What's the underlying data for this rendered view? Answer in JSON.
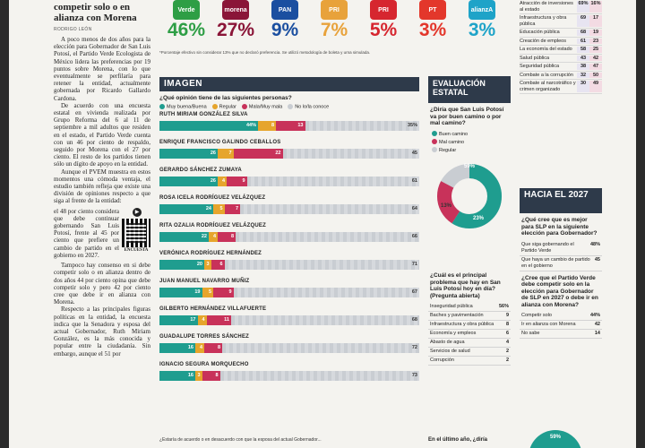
{
  "article": {
    "headline": "competir solo o en alianza con Morena",
    "byline": "RODRIGO LEÓN",
    "paragraphs": [
      "A poco menos de dos años para la elección para Gobernador de San Luis Potosí, el Partido Verde Ecologista de México lidera las preferencias por 19 puntos sobre Morena, con lo que eventualmente se perfilaría para retener la entidad, actualmente gobernada por Ricardo Gallardo Cardona.",
      "De acuerdo con una encuesta estatal en vivienda realizada por Grupo Reforma del 6 al 11 de septiembre a mil adultos que residen en el estado, el Partido Verde cuenta con un 46 por ciento de respaldo, seguido por Morena con el 27 por ciento. El resto de los partidos tienen sólo un dígito de apoyo en la entidad.",
      "Aunque el PVEM muestra en estos momentos una cómoda ventaja, el estudio también refleja que existe una división de opiniones respecto a que siga al frente de la entidad:"
    ],
    "qr_text": "el 48 por ciento considera que debe continuar gobernando San Luis Potosí, frente al 45 por ciento que prefiere un cambio de partido en el gobierno en 2027.",
    "qr_label": "ENCUESTA",
    "paragraphs2": [
      "Tampoco hay consenso en si debe competir solo o en alianza dentro de dos años 44 por ciento opina que debe competir solo y pero 42 por ciento cree que debe ir en alianza con Morena.",
      "Respecto a las principales figuras políticas en la entidad, la encuesta indica que la Senadora y esposa del actual Gobernador, Ruth Miriam González, es la más conocida y popular entre la ciudadanía. Sin embargo, aunque el 51 por"
    ]
  },
  "parties": [
    {
      "name": "Verde",
      "pct": "46%",
      "color": "#2e9e45"
    },
    {
      "name": "morena",
      "pct": "27%",
      "color": "#8a1538"
    },
    {
      "name": "PAN",
      "pct": "9%",
      "color": "#1b4fa0"
    },
    {
      "name": "PRI",
      "pct": "7%",
      "color": "#e8a23b"
    },
    {
      "name": "PRI",
      "pct": "5%",
      "color": "#d6262f"
    },
    {
      "name": "PT",
      "pct": "3%",
      "color": "#e3372b"
    },
    {
      "name": "alianzA",
      "pct": "3%",
      "color": "#1ea3c8"
    }
  ],
  "footnote": "*Porcentaje efectivo sin considerar 13% que no declaró preferencia. Se utilizó metodología de boleta y urna simulada.",
  "imagen": {
    "title": "IMAGEN",
    "question": "¿Qué opinión tiene de las siguientes personas?",
    "legend": [
      {
        "label": "Muy buena/Buena",
        "color": "#1f9d8f"
      },
      {
        "label": "Regular",
        "color": "#e6a52c"
      },
      {
        "label": "Mala/Muy mala",
        "color": "#c8325a"
      },
      {
        "label": "No lo/la conoce",
        "color": "#c9cdd2"
      }
    ],
    "people": [
      {
        "name": "RUTH MIRIAM GONZÁLEZ SILVA",
        "good": 44,
        "regular": 8,
        "bad": 13,
        "unknown": 35
      },
      {
        "name": "ENRIQUE FRANCISCO GALINDO CEBALLOS",
        "good": 26,
        "regular": 7,
        "bad": 22,
        "unknown": 45
      },
      {
        "name": "GERARDO SÁNCHEZ ZUMAYA",
        "good": 26,
        "regular": 4,
        "bad": 9,
        "unknown": 61
      },
      {
        "name": "ROSA ICELA RODRÍGUEZ VELÁZQUEZ",
        "good": 24,
        "regular": 5,
        "bad": 7,
        "unknown": 64
      },
      {
        "name": "RITA OZALIA RODRÍGUEZ VELÁZQUEZ",
        "good": 22,
        "regular": 4,
        "bad": 8,
        "unknown": 66
      },
      {
        "name": "VERÓNICA RODRÍGUEZ HERNÁNDEZ",
        "good": 20,
        "regular": 3,
        "bad": 6,
        "unknown": 71
      },
      {
        "name": "JUAN MANUEL NAVARRO MUÑIZ",
        "good": 19,
        "regular": 5,
        "bad": 9,
        "unknown": 67
      },
      {
        "name": "GILBERTO HERNÁNDEZ VILLAFUERTE",
        "good": 17,
        "regular": 4,
        "bad": 11,
        "unknown": 68
      },
      {
        "name": "GUADALUPE TORRES SÁNCHEZ",
        "good": 16,
        "regular": 4,
        "bad": 8,
        "unknown": 72
      },
      {
        "name": "IGNACIO SEGURA MORQUECHO",
        "good": 16,
        "regular": 3,
        "bad": 8,
        "unknown": 73
      }
    ]
  },
  "evaluacion": {
    "title": "EVALUACIÓN ESTATAL",
    "question": "¿Diría que San Luis Potosí va por buen camino o por mal camino?",
    "legend": [
      {
        "label": "Buen camino",
        "color": "#1f9d8f"
      },
      {
        "label": "Mal camino",
        "color": "#c8325a"
      },
      {
        "label": "Regular",
        "color": "#c9cdd2"
      }
    ],
    "values": {
      "buen": "59%",
      "mal": "23%",
      "regular": "13%"
    }
  },
  "problema": {
    "question": "¿Cuál es el principal problema que hay en San Luis Potosí hoy en día? (Pregunta abierta)",
    "rows": [
      {
        "label": "Inseguridad pública",
        "value": "56%"
      },
      {
        "label": "Baches y pavimentación",
        "value": "9"
      },
      {
        "label": "Infraestructura y obra pública",
        "value": "8"
      },
      {
        "label": "Economía y empleos",
        "value": "6"
      },
      {
        "label": "Abasto de agua",
        "value": "4"
      },
      {
        "label": "Servicios de salud",
        "value": "2"
      },
      {
        "label": "Corrupción",
        "value": "2"
      }
    ]
  },
  "right_table": {
    "rows": [
      {
        "label": "Atracción de inversiones al estado",
        "v1": "69%",
        "v2": "16%"
      },
      {
        "label": "Infraestructura y obra pública",
        "v1": "69",
        "v2": "17"
      },
      {
        "label": "Educación pública",
        "v1": "68",
        "v2": "19"
      },
      {
        "label": "Creación de empleos",
        "v1": "61",
        "v2": "23"
      },
      {
        "label": "La economía del estado",
        "v1": "58",
        "v2": "25"
      },
      {
        "label": "Salud pública",
        "v1": "43",
        "v2": "42"
      },
      {
        "label": "Seguridad pública",
        "v1": "38",
        "v2": "47"
      },
      {
        "label": "Combate a la corrupción",
        "v1": "32",
        "v2": "50"
      },
      {
        "label": "Combate al narcotráfico y crimen organizado",
        "v1": "30",
        "v2": "49"
      }
    ]
  },
  "hacia": {
    "title": "HACIA EL 2027",
    "q1": "¿Qué cree que es mejor para SLP en la siguiente elección para Gobernador?",
    "q1_rows": [
      {
        "label": "Que siga gobernando el Partido Verde",
        "value": "48%"
      },
      {
        "label": "Que haya un cambio de partido en el gobierno",
        "value": "45"
      }
    ],
    "q2": "¿Cree que el Partido Verde debe competir solo en la elección para Gobernador de SLP en 2027 o debe ir en alianza con Morena?",
    "q2_rows": [
      {
        "label": "Competir solo",
        "value": "44%"
      },
      {
        "label": "Ir en alianza con Morena",
        "value": "42"
      },
      {
        "label": "No sabe",
        "value": "14"
      }
    ]
  },
  "bottom": {
    "left": "¿Estaría de acuerdo o en desacuerdo con que la esposa del actual Gobernador...",
    "middle": "En el último año, ¿diría",
    "pie_value": "59%"
  }
}
